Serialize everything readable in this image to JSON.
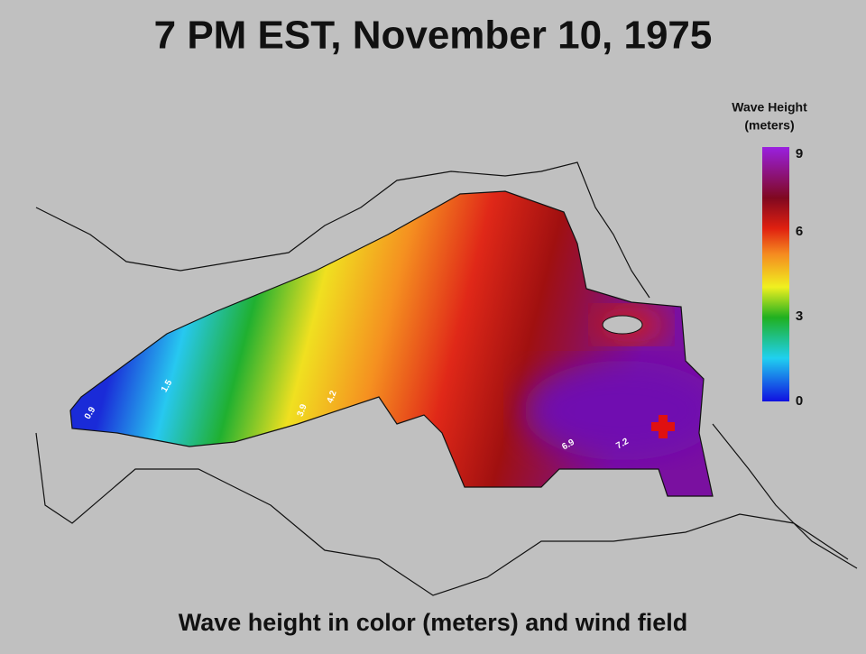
{
  "header": {
    "title": "7 PM EST, November 10, 1975"
  },
  "legend": {
    "title_lines": [
      "Wave Height",
      "(meters)"
    ],
    "ticks": [
      0,
      3,
      6,
      9
    ]
  },
  "map": {
    "contour_labels": [
      "0.9",
      "1.5",
      "3.9",
      "4.2",
      "6.9",
      "7.2"
    ]
  },
  "caption": "Wave height in color (meters) and wind field"
}
